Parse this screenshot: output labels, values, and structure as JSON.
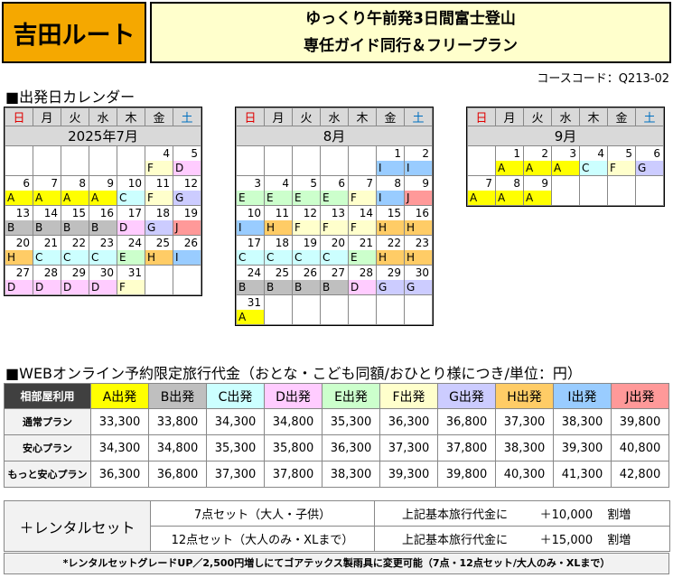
{
  "route_title": "吉田ルート",
  "tour_title_line1": "ゆっくり午前発3日間富士登山",
  "tour_title_line2": "専任ガイド同行＆フリープラン",
  "course_code": "コースコード：Q213-02",
  "calendar_heading": "■出発日カレンダー",
  "weekdays": [
    "日",
    "月",
    "火",
    "水",
    "木",
    "金",
    "土"
  ],
  "colors": {
    "A": "#ffff00",
    "B": "#bfbfbf",
    "C": "#ccffff",
    "D": "#ffccff",
    "E": "#ccffcc",
    "F": "#ffffcc",
    "G": "#ccccff",
    "H": "#ffcc66",
    "I": "#99ccff",
    "J": "#ff9999",
    "holiday_outline": "#f5a800"
  },
  "calendars": [
    {
      "month": "2025年7月",
      "weeks": [
        [
          null,
          null,
          null,
          null,
          null,
          {
            "d": "4",
            "c": "F"
          },
          {
            "d": "5",
            "c": "D"
          }
        ],
        [
          {
            "d": "6",
            "c": "A"
          },
          {
            "d": "7",
            "c": "A"
          },
          {
            "d": "8",
            "c": "A"
          },
          {
            "d": "9",
            "c": "A"
          },
          {
            "d": "10",
            "c": "C"
          },
          {
            "d": "11",
            "c": "F"
          },
          {
            "d": "12",
            "c": "G"
          }
        ],
        [
          {
            "d": "13",
            "c": "B"
          },
          {
            "d": "14",
            "c": "B"
          },
          {
            "d": "15",
            "c": "B"
          },
          {
            "d": "16",
            "c": "B"
          },
          {
            "d": "17",
            "c": "D"
          },
          {
            "d": "18",
            "c": "G"
          },
          {
            "d": "19",
            "c": "J"
          }
        ],
        [
          {
            "d": "20",
            "c": "H"
          },
          {
            "d": "21",
            "c": "C"
          },
          {
            "d": "22",
            "c": "C"
          },
          {
            "d": "23",
            "c": "C"
          },
          {
            "d": "24",
            "c": "E"
          },
          {
            "d": "25",
            "c": "H"
          },
          {
            "d": "26",
            "c": "I"
          }
        ],
        [
          {
            "d": "27",
            "c": "D"
          },
          {
            "d": "28",
            "c": "D"
          },
          {
            "d": "29",
            "c": "D"
          },
          {
            "d": "30",
            "c": "D"
          },
          {
            "d": "31",
            "c": "F"
          },
          null,
          null
        ]
      ]
    },
    {
      "month": "8月",
      "weeks": [
        [
          null,
          null,
          null,
          null,
          null,
          {
            "d": "1",
            "c": "I"
          },
          {
            "d": "2",
            "c": "I"
          }
        ],
        [
          {
            "d": "3",
            "c": "E"
          },
          {
            "d": "4",
            "c": "E"
          },
          {
            "d": "5",
            "c": "E"
          },
          {
            "d": "6",
            "c": "E"
          },
          {
            "d": "7",
            "c": "F"
          },
          {
            "d": "8",
            "c": "I"
          },
          {
            "d": "9",
            "c": "J"
          }
        ],
        [
          {
            "d": "10",
            "c": "I"
          },
          {
            "d": "11",
            "c": "H"
          },
          {
            "d": "12",
            "c": "F"
          },
          {
            "d": "13",
            "c": "F"
          },
          {
            "d": "14",
            "c": "F"
          },
          {
            "d": "15",
            "c": "H"
          },
          {
            "d": "16",
            "c": "H"
          }
        ],
        [
          {
            "d": "17",
            "c": "C"
          },
          {
            "d": "18",
            "c": "C"
          },
          {
            "d": "19",
            "c": "C"
          },
          {
            "d": "20",
            "c": "C"
          },
          {
            "d": "21",
            "c": "E"
          },
          {
            "d": "22",
            "c": "H"
          },
          {
            "d": "23",
            "c": "H"
          }
        ],
        [
          {
            "d": "24",
            "c": "B"
          },
          {
            "d": "25",
            "c": "B"
          },
          {
            "d": "26",
            "c": "B"
          },
          {
            "d": "27",
            "c": "B"
          },
          {
            "d": "28",
            "c": "D"
          },
          {
            "d": "29",
            "c": "G"
          },
          {
            "d": "30",
            "c": "G"
          }
        ],
        [
          {
            "d": "31",
            "c": "A"
          },
          null,
          null,
          null,
          null,
          null,
          null
        ]
      ]
    },
    {
      "month": "9月",
      "weeks": [
        [
          null,
          {
            "d": "1",
            "c": "A"
          },
          {
            "d": "2",
            "c": "A"
          },
          {
            "d": "3",
            "c": "A"
          },
          {
            "d": "4",
            "c": "C"
          },
          {
            "d": "5",
            "c": "F"
          },
          {
            "d": "6",
            "c": "G"
          }
        ],
        [
          {
            "d": "7",
            "c": "A"
          },
          {
            "d": "8",
            "c": "A"
          },
          {
            "d": "9",
            "c": "A"
          },
          null,
          null,
          null,
          null
        ]
      ]
    }
  ],
  "price_heading": "■WEBオンライン予約限定旅行代金（おとな・こども同額/おひとり様につき/単位：円）",
  "price_table": {
    "corner": "相部屋利用",
    "columns": [
      {
        "label": "A出発",
        "code": "A"
      },
      {
        "label": "B出発",
        "code": "B"
      },
      {
        "label": "C出発",
        "code": "C"
      },
      {
        "label": "D出発",
        "code": "D"
      },
      {
        "label": "E出発",
        "code": "E"
      },
      {
        "label": "F出発",
        "code": "F"
      },
      {
        "label": "G出発",
        "code": "G"
      },
      {
        "label": "H出発",
        "code": "H"
      },
      {
        "label": "I出発",
        "code": "I"
      },
      {
        "label": "J出発",
        "code": "J"
      }
    ],
    "rows": [
      {
        "plan": "通常プラン",
        "prices": [
          "33,300",
          "33,800",
          "34,300",
          "34,800",
          "35,300",
          "36,300",
          "36,800",
          "37,300",
          "38,300",
          "39,800"
        ]
      },
      {
        "plan": "安心プラン",
        "prices": [
          "34,300",
          "34,800",
          "35,300",
          "35,800",
          "36,300",
          "37,300",
          "37,800",
          "38,300",
          "39,300",
          "40,800"
        ]
      },
      {
        "plan": "もっと安心プラン",
        "prices": [
          "36,300",
          "36,800",
          "37,300",
          "37,800",
          "38,300",
          "39,300",
          "39,800",
          "40,300",
          "41,300",
          "42,800"
        ]
      }
    ]
  },
  "rental": {
    "label": "＋レンタルセット",
    "rows": [
      {
        "set": "7点セット（大人・子供）",
        "base": "上記基本旅行代金に",
        "amount": "＋10,000",
        "suffix": "割増"
      },
      {
        "set": "12点セット（大人のみ・XLまで）",
        "base": "上記基本旅行代金に",
        "amount": "＋15,000",
        "suffix": "割増"
      }
    ]
  },
  "note": "*レンタルセットグレードUP／2,500円増しにてゴアテックス製雨具に変更可能（7点・12点セット/大人のみ・XLまで）"
}
